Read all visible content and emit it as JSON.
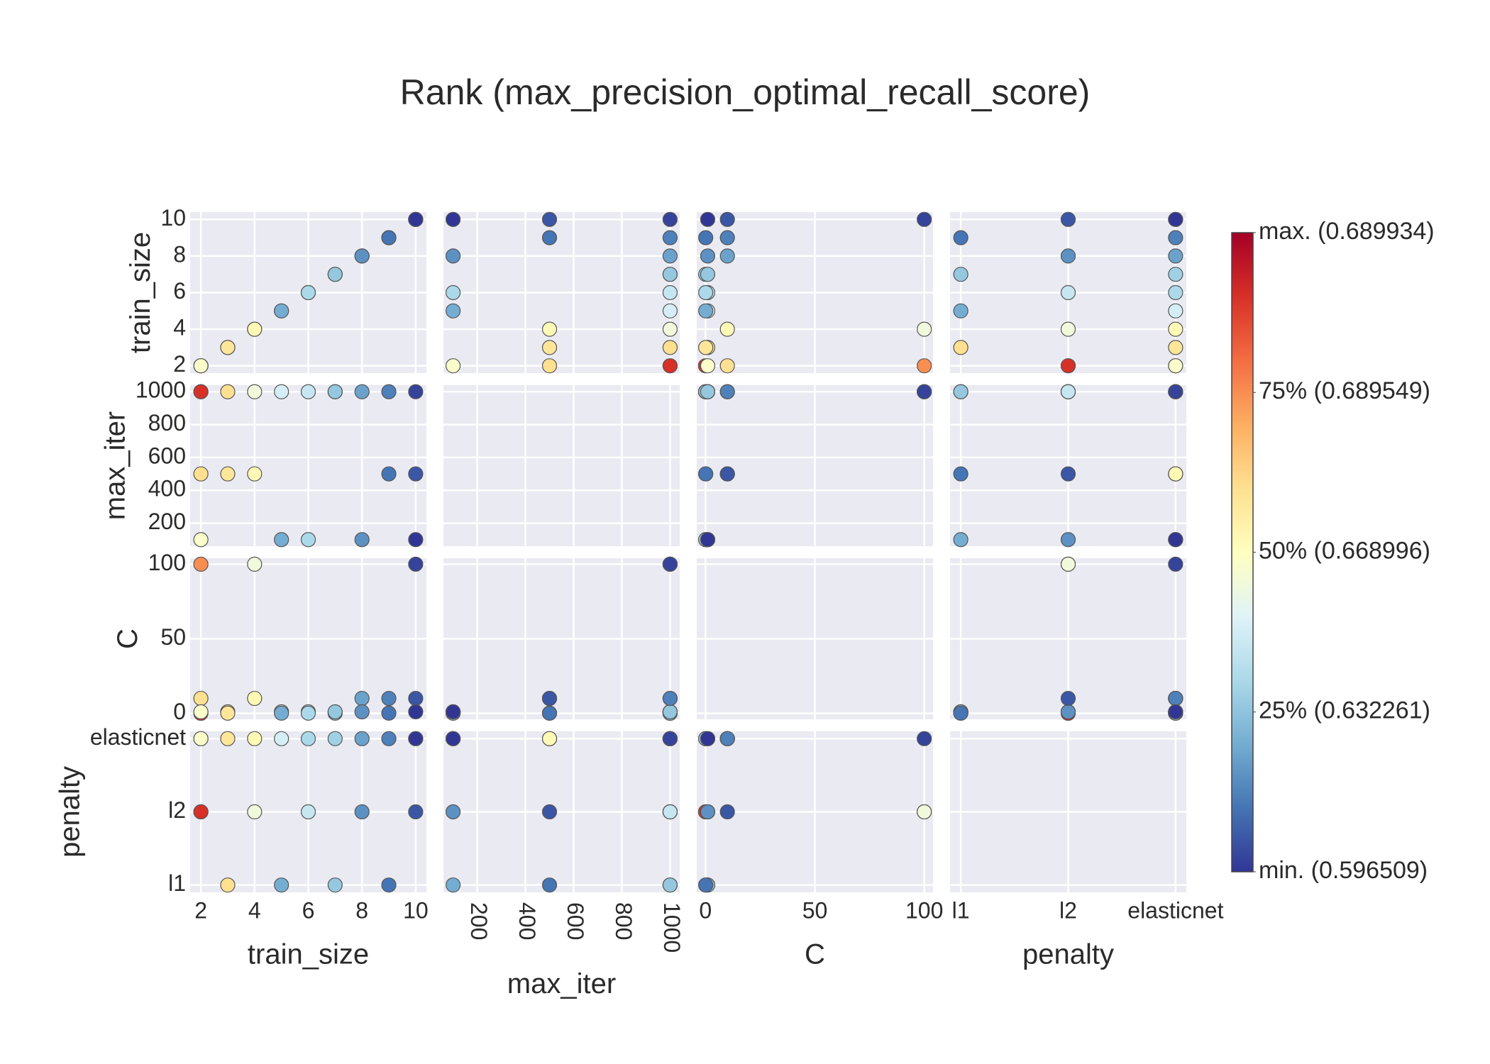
{
  "chart_data": {
    "type": "splom",
    "title": "Rank (max_precision_optimal_recall_score)",
    "dimensions": [
      {
        "label": "train_size",
        "range": [
          1.6,
          10.4
        ],
        "ticks": [
          2,
          4,
          6,
          8,
          10
        ],
        "values": [
          2,
          2,
          2,
          2,
          3,
          3,
          4,
          4,
          5,
          5,
          6,
          6,
          7,
          7,
          8,
          8,
          9,
          9,
          10,
          10,
          10
        ]
      },
      {
        "label": "max_iter",
        "range": [
          60,
          1040
        ],
        "ticks": [
          200,
          400,
          600,
          800,
          1000
        ],
        "values": [
          1000,
          500,
          1000,
          100,
          1000,
          500,
          1000,
          500,
          1000,
          100,
          1000,
          100,
          1000,
          1000,
          1000,
          100,
          1000,
          500,
          1000,
          500,
          100
        ]
      },
      {
        "label": "C",
        "range": [
          -4,
          104
        ],
        "ticks": [
          0,
          50,
          100
        ],
        "values": [
          100,
          10,
          0.01,
          1,
          1,
          0.1,
          100,
          10,
          1,
          0.1,
          1,
          0.1,
          0.1,
          1,
          10,
          1,
          10,
          0.1,
          100,
          10,
          1
        ]
      },
      {
        "label": "penalty",
        "categories": [
          "l1",
          "l2",
          "elasticnet"
        ],
        "values": [
          "l2",
          "elasticnet",
          "l2",
          "elasticnet",
          "l1",
          "elasticnet",
          "l2",
          "elasticnet",
          "elasticnet",
          "l1",
          "l2",
          "elasticnet",
          "elasticnet",
          "l1",
          "elasticnet",
          "l2",
          "elasticnet",
          "l1",
          "elasticnet",
          "l2",
          "elasticnet"
        ]
      }
    ],
    "color_values": [
      0.75,
      0.6,
      0.9,
      0.48,
      0.6,
      0.58,
      0.45,
      0.52,
      0.38,
      0.2,
      0.35,
      0.3,
      0.28,
      0.26,
      0.18,
      0.15,
      0.12,
      0.1,
      0.02,
      0.05,
      0.0
    ],
    "colorscale": [
      [
        0,
        "#313695"
      ],
      [
        0.1,
        "#4575b4"
      ],
      [
        0.2,
        "#74add1"
      ],
      [
        0.3,
        "#abd9e9"
      ],
      [
        0.4,
        "#e0f3f8"
      ],
      [
        0.5,
        "#ffffbf"
      ],
      [
        0.6,
        "#fee090"
      ],
      [
        0.7,
        "#fdae61"
      ],
      [
        0.8,
        "#f46d43"
      ],
      [
        0.9,
        "#d73027"
      ],
      [
        1,
        "#a50026"
      ]
    ],
    "colorbar": {
      "range": [
        0,
        1
      ],
      "ticks": [
        {
          "value": 1,
          "label": "max. (0.689934)"
        },
        {
          "value": 0.75,
          "label": "75% (0.689549)"
        },
        {
          "value": 0.5,
          "label": "50% (0.668996)"
        },
        {
          "value": 0.25,
          "label": "25% (0.632261)"
        },
        {
          "value": 0,
          "label": "min. (0.596509)"
        }
      ]
    }
  }
}
